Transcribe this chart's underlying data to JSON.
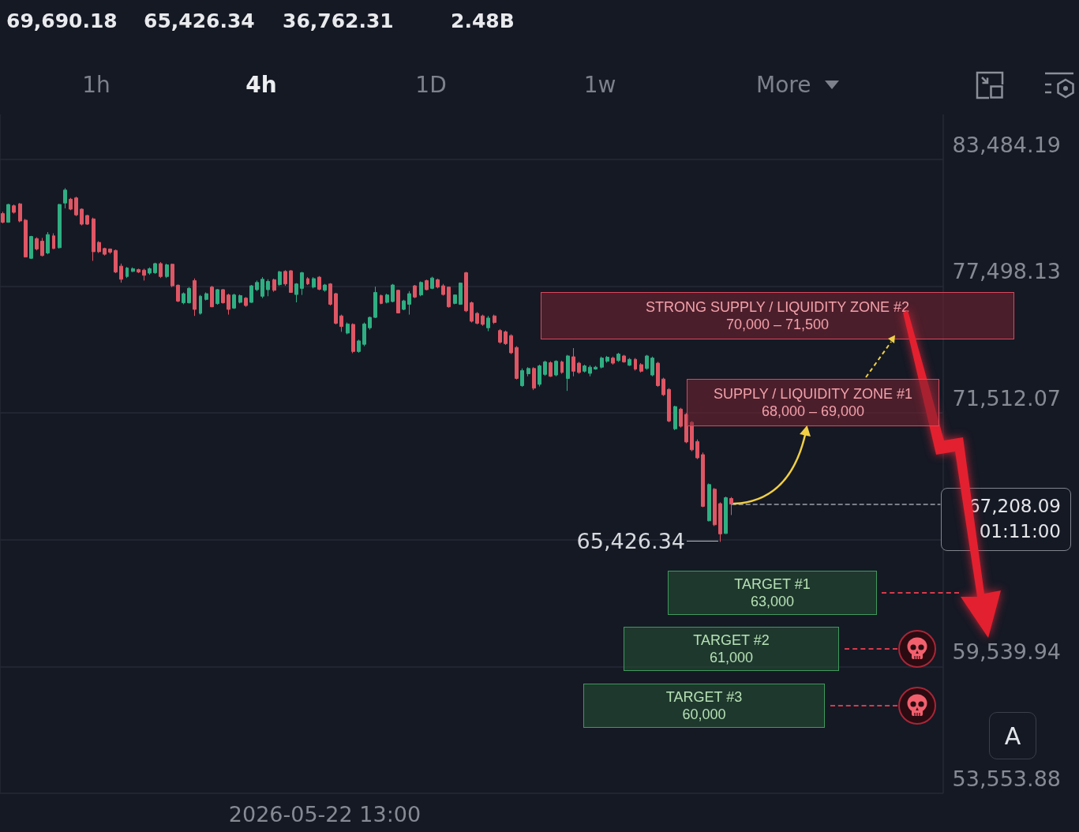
{
  "chart_data": {
    "type": "candlestick",
    "categories": [
      null,
      null,
      null,
      null,
      null,
      null,
      null,
      null,
      null,
      null,
      null,
      null,
      null,
      null,
      null,
      null,
      null,
      null,
      null,
      null,
      null,
      null,
      null,
      null,
      null,
      null,
      null,
      null,
      null,
      null,
      null,
      null,
      null,
      null,
      null,
      null,
      null,
      null,
      null,
      null,
      null,
      null,
      null,
      null,
      null,
      null,
      null,
      null,
      null,
      null,
      null,
      null,
      null,
      null,
      null,
      null,
      null,
      "2026-05-22 13:00",
      null,
      null,
      null,
      null,
      null,
      null,
      null,
      null,
      null,
      null,
      null,
      null,
      null,
      null,
      null,
      null,
      null,
      null,
      null,
      null,
      null,
      null,
      null,
      null,
      null,
      null,
      null,
      null,
      null,
      null,
      null,
      null,
      null,
      null,
      null,
      null,
      null,
      null,
      null,
      null,
      null,
      null,
      null,
      null,
      null,
      null,
      null,
      null,
      null,
      null,
      null,
      null,
      null,
      null,
      null,
      null,
      null,
      null,
      null,
      null,
      null,
      null,
      null,
      null,
      null,
      null,
      null,
      null,
      null,
      null,
      null,
      null,
      null,
      null,
      null,
      null,
      null,
      null,
      null,
      null,
      null,
      null,
      null,
      null,
      null,
      null,
      null,
      null,
      null,
      null,
      null,
      null,
      null,
      null,
      null,
      null,
      null,
      null,
      null,
      null,
      null,
      null,
      null,
      null,
      null,
      null,
      null,
      null,
      null
    ],
    "ohlc": [
      [
        80920,
        81010,
        80460,
        80510
      ],
      [
        80510,
        81380,
        80490,
        81350
      ],
      [
        81290,
        81350,
        80920,
        80980
      ],
      [
        81380,
        81420,
        80510,
        80570
      ],
      [
        80610,
        80670,
        78850,
        78870
      ],
      [
        78810,
        79870,
        78780,
        79840
      ],
      [
        79740,
        79800,
        79180,
        79250
      ],
      [
        79620,
        79770,
        78900,
        78940
      ],
      [
        79060,
        80050,
        79000,
        79930
      ],
      [
        79870,
        79990,
        79250,
        79270
      ],
      [
        79310,
        81380,
        79270,
        81350
      ],
      [
        81420,
        82120,
        81170,
        82030
      ],
      [
        81600,
        81660,
        81080,
        81130
      ],
      [
        81660,
        81720,
        80800,
        80860
      ],
      [
        81130,
        81170,
        80360,
        80420
      ],
      [
        80830,
        80860,
        80390,
        80420
      ],
      [
        80670,
        80730,
        78690,
        79120
      ],
      [
        79560,
        79620,
        79060,
        79120
      ],
      [
        79270,
        79310,
        78940,
        79000
      ],
      [
        79250,
        79270,
        79020,
        79100
      ],
      [
        79180,
        79220,
        78110,
        78160
      ],
      [
        78440,
        78560,
        77660,
        77820
      ],
      [
        77950,
        78400,
        77880,
        78350
      ],
      [
        78190,
        78380,
        78160,
        78320
      ],
      [
        78280,
        78320,
        78110,
        78160
      ],
      [
        78250,
        78320,
        77760,
        78010
      ],
      [
        78110,
        78380,
        78030,
        78320
      ],
      [
        78130,
        78600,
        78070,
        78560
      ],
      [
        78560,
        78630,
        77880,
        77950
      ],
      [
        77950,
        78560,
        77880,
        78500
      ],
      [
        78530,
        78560,
        77450,
        77510
      ],
      [
        77540,
        77570,
        76740,
        76790
      ],
      [
        76710,
        77200,
        76640,
        77140
      ],
      [
        76710,
        77450,
        76670,
        77390
      ],
      [
        77760,
        77860,
        76090,
        76400
      ],
      [
        76210,
        77080,
        76150,
        77020
      ],
      [
        76870,
        77200,
        76820,
        77140
      ],
      [
        77450,
        77510,
        76500,
        76520
      ],
      [
        76670,
        77360,
        76620,
        77330
      ],
      [
        77330,
        77360,
        76670,
        76710
      ],
      [
        77080,
        77140,
        76150,
        76400
      ],
      [
        76460,
        77140,
        76420,
        77080
      ],
      [
        76730,
        77100,
        76680,
        77050
      ],
      [
        76930,
        76980,
        76520,
        76580
      ],
      [
        76730,
        77550,
        76710,
        77510
      ],
      [
        77330,
        77760,
        77260,
        77670
      ],
      [
        77020,
        77920,
        76930,
        77820
      ],
      [
        77330,
        77820,
        77020,
        77720
      ],
      [
        77800,
        77850,
        77230,
        77300
      ],
      [
        77570,
        78220,
        77510,
        78170
      ],
      [
        78190,
        78250,
        77510,
        77600
      ],
      [
        78220,
        78250,
        77180,
        77200
      ],
      [
        77100,
        77640,
        76730,
        77600
      ],
      [
        77390,
        78170,
        77080,
        78130
      ],
      [
        77850,
        77920,
        77550,
        77600
      ],
      [
        77450,
        77920,
        77390,
        77850
      ],
      [
        77920,
        77970,
        77300,
        77350
      ],
      [
        77300,
        77600,
        77230,
        77550
      ],
      [
        77600,
        77640,
        76580,
        76640
      ],
      [
        77140,
        77180,
        75690,
        75740
      ],
      [
        76090,
        76150,
        75340,
        75590
      ],
      [
        75280,
        75780,
        75220,
        75710
      ],
      [
        75690,
        75740,
        74330,
        74410
      ],
      [
        74410,
        74970,
        74350,
        74910
      ],
      [
        74750,
        75780,
        74660,
        75710
      ],
      [
        75530,
        76060,
        75440,
        76020
      ],
      [
        76020,
        77470,
        75990,
        77200
      ],
      [
        77050,
        77100,
        76640,
        76680
      ],
      [
        76730,
        77140,
        76680,
        77080
      ],
      [
        76770,
        77600,
        76730,
        77550
      ],
      [
        77300,
        77330,
        76210,
        76230
      ],
      [
        76400,
        76850,
        76360,
        76800
      ],
      [
        76640,
        77260,
        76150,
        77140
      ],
      [
        77510,
        77550,
        76930,
        76980
      ],
      [
        77080,
        77720,
        77020,
        77670
      ],
      [
        77760,
        77800,
        77300,
        77330
      ],
      [
        77390,
        77940,
        77350,
        77880
      ],
      [
        77800,
        77850,
        77390,
        77450
      ],
      [
        77510,
        77600,
        77050,
        77100
      ],
      [
        77450,
        77470,
        76480,
        76520
      ],
      [
        76680,
        77100,
        76640,
        77080
      ],
      [
        76640,
        77670,
        76610,
        77640
      ],
      [
        78130,
        78170,
        76270,
        76330
      ],
      [
        76710,
        76770,
        75780,
        75840
      ],
      [
        76210,
        76270,
        75690,
        75740
      ],
      [
        76090,
        76150,
        75620,
        75690
      ],
      [
        75530,
        76090,
        75370,
        75990
      ],
      [
        76090,
        76150,
        75710,
        75780
      ],
      [
        75400,
        75470,
        74780,
        74850
      ],
      [
        75340,
        75400,
        74720,
        74780
      ],
      [
        75160,
        75220,
        74290,
        74350
      ],
      [
        74600,
        74660,
        73090,
        73140
      ],
      [
        72800,
        73610,
        72740,
        73510
      ],
      [
        73360,
        73670,
        73240,
        73610
      ],
      [
        73610,
        73670,
        72590,
        72680
      ],
      [
        72860,
        73790,
        72760,
        73730
      ],
      [
        73330,
        73980,
        73260,
        73920
      ],
      [
        73880,
        73950,
        73210,
        73240
      ],
      [
        73300,
        74000,
        73240,
        73950
      ],
      [
        73920,
        73980,
        73360,
        73420
      ],
      [
        73140,
        74250,
        72550,
        74200
      ],
      [
        74160,
        74570,
        73240,
        73480
      ],
      [
        73860,
        73920,
        73360,
        73420
      ],
      [
        73480,
        73790,
        73420,
        73730
      ],
      [
        73380,
        73760,
        73240,
        73670
      ],
      [
        73580,
        73730,
        73550,
        73670
      ],
      [
        73670,
        74170,
        73610,
        74100
      ],
      [
        73950,
        74200,
        73880,
        74140
      ],
      [
        74100,
        74170,
        73790,
        73860
      ],
      [
        73980,
        74350,
        73920,
        74290
      ],
      [
        74200,
        74250,
        73880,
        73920
      ],
      [
        73760,
        74100,
        73730,
        74040
      ],
      [
        74040,
        74100,
        73510,
        73580
      ],
      [
        73790,
        73860,
        73420,
        73480
      ],
      [
        73610,
        74250,
        73550,
        74200
      ],
      [
        73300,
        74170,
        73240,
        74100
      ],
      [
        73860,
        73920,
        72740,
        72800
      ],
      [
        73110,
        73170,
        72310,
        72370
      ],
      [
        72620,
        72680,
        71070,
        71130
      ],
      [
        70760,
        71850,
        70700,
        71810
      ],
      [
        71690,
        71750,
        70820,
        70880
      ],
      [
        71440,
        71500,
        70080,
        70140
      ],
      [
        71070,
        71130,
        69700,
        69770
      ],
      [
        70160,
        70260,
        69330,
        69390
      ],
      [
        69540,
        69640,
        67060,
        67100
      ],
      [
        66420,
        68180,
        66390,
        68130
      ],
      [
        67910,
        67970,
        66170,
        66230
      ],
      [
        67230,
        67290,
        65426.34,
        65800
      ],
      [
        65820,
        67560,
        65800,
        67510
      ],
      [
        67470,
        67540,
        66690,
        67208.09
      ],
      null,
      null,
      null,
      null,
      null,
      null,
      null,
      null,
      null,
      null,
      null,
      null,
      null,
      null,
      null,
      null,
      null,
      null,
      null,
      null,
      null,
      null,
      null,
      null,
      null,
      null,
      null,
      null,
      null,
      null,
      null,
      null,
      null,
      null,
      null,
      null,
      null
    ],
    "ylim": [
      53553.88,
      85600
    ],
    "yticks": [
      {
        "value": 53553.88,
        "label": "53,553.88"
      },
      {
        "value": 59539.94,
        "label": "59,539.94"
      },
      {
        "value": 65526.0,
        "label": null
      },
      {
        "value": 71512.07,
        "label": "71,512.07"
      },
      {
        "value": 77498.13,
        "label": "77,498.13"
      },
      {
        "value": 83484.19,
        "label": "83,484.19"
      }
    ],
    "grid": true,
    "ref_lines": [
      {
        "axis": "y",
        "value": 67208.09,
        "label": "67,208.09",
        "color": "#9ca1aa",
        "line_style": "dashed"
      }
    ],
    "annotations": [
      "69,690.18",
      "65,426.34",
      "36,762.31",
      "2.48B",
      "1h",
      "4h",
      "1D",
      "1w",
      "More",
      "STRONG SUPPLY / LIQUIDITY ZONE #2\n70,000 – 71,500",
      "SUPPLY / LIQUIDITY ZONE #1\n68,000 – 69,000",
      "TARGET #1\n63,000",
      "TARGET #2\n61,000",
      "TARGET #3\n60,000",
      "65,426.34",
      "01:11:00",
      "A"
    ]
  }
}
